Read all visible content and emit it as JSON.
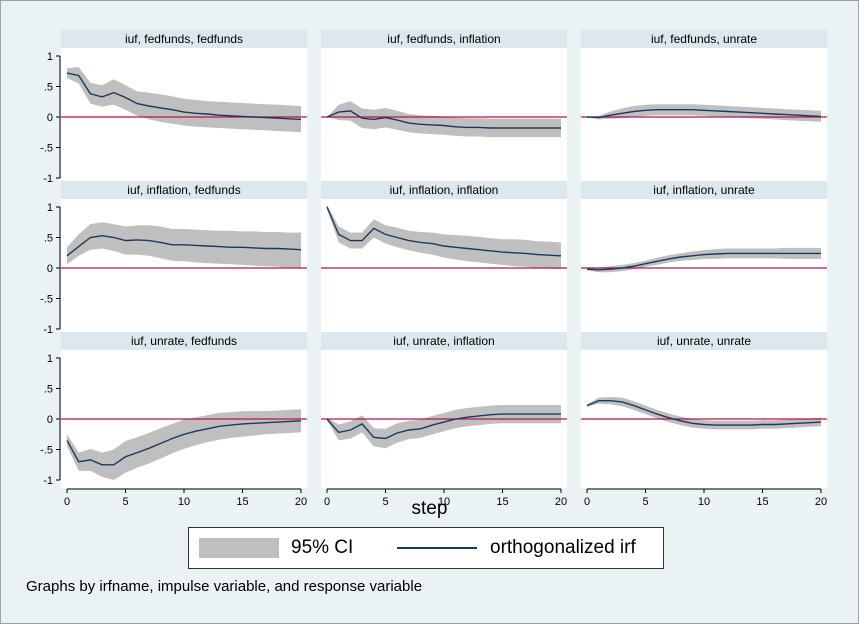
{
  "note": "Graphs by irfname, impulse variable, and response variable",
  "legend": {
    "ci_label": "95% CI",
    "irf_label": "orthogonalized irf"
  },
  "colors": {
    "ci_band": "#bfbfbf",
    "irf_line": "#1b3a5a",
    "zero_line": "#b0164e",
    "panel_bg": "#ffffff",
    "header_bg": "#dce8ee",
    "plot_region": "#eaf2f3"
  },
  "chart_data": {
    "type": "line",
    "xlabel": "step",
    "xlim": [
      0,
      20
    ],
    "ylim": [
      -1,
      1
    ],
    "xticks": [
      "0",
      "5",
      "10",
      "15",
      "20"
    ],
    "yticks": [
      "1",
      ".5",
      "0",
      "-.5",
      "-1"
    ],
    "steps": [
      0,
      1,
      2,
      3,
      4,
      5,
      6,
      7,
      8,
      9,
      10,
      11,
      12,
      13,
      14,
      15,
      16,
      17,
      18,
      19,
      20
    ],
    "panels": [
      {
        "title": "iuf, fedfunds, fedfunds",
        "irf": [
          0.72,
          0.68,
          0.38,
          0.33,
          0.4,
          0.32,
          0.22,
          0.18,
          0.15,
          0.12,
          0.08,
          0.06,
          0.05,
          0.03,
          0.02,
          0.01,
          0.0,
          -0.01,
          -0.02,
          -0.03,
          -0.04
        ],
        "lower": [
          0.64,
          0.55,
          0.22,
          0.17,
          0.2,
          0.12,
          0.02,
          -0.04,
          -0.08,
          -0.11,
          -0.14,
          -0.16,
          -0.17,
          -0.18,
          -0.19,
          -0.2,
          -0.21,
          -0.22,
          -0.23,
          -0.24,
          -0.25
        ],
        "upper": [
          0.8,
          0.82,
          0.56,
          0.52,
          0.62,
          0.52,
          0.42,
          0.4,
          0.37,
          0.34,
          0.3,
          0.28,
          0.26,
          0.25,
          0.24,
          0.23,
          0.22,
          0.21,
          0.2,
          0.19,
          0.18
        ]
      },
      {
        "title": "iuf, fedfunds, inflation",
        "irf": [
          0.0,
          0.08,
          0.1,
          -0.02,
          -0.04,
          -0.01,
          -0.05,
          -0.1,
          -0.12,
          -0.13,
          -0.14,
          -0.16,
          -0.17,
          -0.17,
          -0.18,
          -0.18,
          -0.18,
          -0.18,
          -0.18,
          -0.18,
          -0.18
        ],
        "lower": [
          0.0,
          -0.05,
          -0.06,
          -0.18,
          -0.2,
          -0.17,
          -0.21,
          -0.25,
          -0.27,
          -0.28,
          -0.29,
          -0.31,
          -0.32,
          -0.32,
          -0.33,
          -0.33,
          -0.33,
          -0.33,
          -0.33,
          -0.33,
          -0.33
        ],
        "upper": [
          0.0,
          0.2,
          0.26,
          0.14,
          0.12,
          0.15,
          0.1,
          0.05,
          0.03,
          0.02,
          0.01,
          -0.01,
          -0.02,
          -0.02,
          -0.03,
          -0.03,
          -0.03,
          -0.03,
          -0.03,
          -0.03,
          -0.03
        ]
      },
      {
        "title": "iuf, fedfunds, unrate",
        "irf": [
          0.0,
          -0.01,
          0.03,
          0.06,
          0.09,
          0.11,
          0.12,
          0.12,
          0.12,
          0.12,
          0.11,
          0.1,
          0.09,
          0.08,
          0.07,
          0.06,
          0.05,
          0.04,
          0.03,
          0.02,
          0.01
        ],
        "lower": [
          0.0,
          -0.04,
          -0.03,
          -0.02,
          0.0,
          0.02,
          0.03,
          0.03,
          0.03,
          0.03,
          0.02,
          0.01,
          0.0,
          -0.01,
          -0.02,
          -0.03,
          -0.04,
          -0.05,
          -0.06,
          -0.07,
          -0.08
        ],
        "upper": [
          0.0,
          0.02,
          0.09,
          0.14,
          0.18,
          0.2,
          0.21,
          0.21,
          0.21,
          0.21,
          0.2,
          0.19,
          0.18,
          0.17,
          0.16,
          0.15,
          0.14,
          0.13,
          0.12,
          0.11,
          0.1
        ]
      },
      {
        "title": "iuf, inflation, fedfunds",
        "irf": [
          0.2,
          0.35,
          0.5,
          0.53,
          0.5,
          0.45,
          0.46,
          0.45,
          0.42,
          0.38,
          0.38,
          0.37,
          0.36,
          0.35,
          0.34,
          0.34,
          0.33,
          0.32,
          0.32,
          0.31,
          0.3
        ],
        "lower": [
          0.06,
          0.2,
          0.3,
          0.32,
          0.28,
          0.22,
          0.22,
          0.2,
          0.16,
          0.12,
          0.11,
          0.09,
          0.08,
          0.07,
          0.06,
          0.05,
          0.04,
          0.03,
          0.02,
          0.01,
          0.0
        ],
        "upper": [
          0.34,
          0.55,
          0.72,
          0.75,
          0.72,
          0.68,
          0.7,
          0.7,
          0.68,
          0.64,
          0.64,
          0.63,
          0.62,
          0.61,
          0.61,
          0.6,
          0.6,
          0.59,
          0.59,
          0.58,
          0.58
        ]
      },
      {
        "title": "iuf, inflation, inflation",
        "irf": [
          1.0,
          0.55,
          0.45,
          0.45,
          0.65,
          0.55,
          0.5,
          0.45,
          0.42,
          0.4,
          0.36,
          0.34,
          0.32,
          0.3,
          0.28,
          0.26,
          0.25,
          0.24,
          0.22,
          0.21,
          0.2
        ],
        "lower": [
          0.96,
          0.42,
          0.32,
          0.32,
          0.5,
          0.4,
          0.34,
          0.29,
          0.25,
          0.22,
          0.17,
          0.14,
          0.11,
          0.09,
          0.07,
          0.05,
          0.03,
          0.02,
          0.0,
          -0.01,
          -0.02
        ],
        "upper": [
          1.04,
          0.68,
          0.58,
          0.58,
          0.8,
          0.7,
          0.66,
          0.61,
          0.59,
          0.58,
          0.55,
          0.54,
          0.53,
          0.51,
          0.49,
          0.47,
          0.47,
          0.46,
          0.44,
          0.43,
          0.42
        ]
      },
      {
        "title": "iuf, inflation, unrate",
        "irf": [
          -0.02,
          -0.03,
          -0.02,
          0.0,
          0.03,
          0.07,
          0.11,
          0.15,
          0.18,
          0.2,
          0.22,
          0.23,
          0.24,
          0.24,
          0.24,
          0.24,
          0.24,
          0.24,
          0.24,
          0.24,
          0.24
        ],
        "lower": [
          -0.04,
          -0.07,
          -0.07,
          -0.05,
          -0.02,
          0.02,
          0.05,
          0.09,
          0.12,
          0.13,
          0.15,
          0.15,
          0.16,
          0.16,
          0.16,
          0.16,
          0.16,
          0.15,
          0.15,
          0.15,
          0.15
        ],
        "upper": [
          0.0,
          0.01,
          0.03,
          0.05,
          0.08,
          0.12,
          0.17,
          0.21,
          0.24,
          0.27,
          0.29,
          0.31,
          0.32,
          0.32,
          0.32,
          0.32,
          0.32,
          0.33,
          0.33,
          0.33,
          0.33
        ]
      },
      {
        "title": "iuf, unrate, fedfunds",
        "irf": [
          -0.35,
          -0.7,
          -0.67,
          -0.75,
          -0.75,
          -0.62,
          -0.55,
          -0.48,
          -0.4,
          -0.32,
          -0.25,
          -0.2,
          -0.16,
          -0.12,
          -0.1,
          -0.08,
          -0.07,
          -0.06,
          -0.05,
          -0.04,
          -0.03
        ],
        "lower": [
          -0.45,
          -0.85,
          -0.85,
          -0.95,
          -1.0,
          -0.88,
          -0.8,
          -0.73,
          -0.65,
          -0.56,
          -0.49,
          -0.43,
          -0.38,
          -0.34,
          -0.31,
          -0.29,
          -0.27,
          -0.25,
          -0.24,
          -0.23,
          -0.22
        ],
        "upper": [
          -0.25,
          -0.55,
          -0.49,
          -0.55,
          -0.5,
          -0.36,
          -0.3,
          -0.23,
          -0.15,
          -0.08,
          -0.01,
          0.03,
          0.06,
          0.1,
          0.11,
          0.13,
          0.13,
          0.13,
          0.14,
          0.15,
          0.16
        ]
      },
      {
        "title": "iuf, unrate, inflation",
        "irf": [
          0.0,
          -0.22,
          -0.18,
          -0.08,
          -0.3,
          -0.32,
          -0.23,
          -0.18,
          -0.16,
          -0.1,
          -0.05,
          0.0,
          0.03,
          0.05,
          0.07,
          0.08,
          0.08,
          0.08,
          0.08,
          0.08,
          0.08
        ],
        "lower": [
          -0.02,
          -0.35,
          -0.32,
          -0.22,
          -0.45,
          -0.48,
          -0.39,
          -0.33,
          -0.31,
          -0.25,
          -0.2,
          -0.15,
          -0.12,
          -0.1,
          -0.08,
          -0.07,
          -0.07,
          -0.07,
          -0.07,
          -0.07,
          -0.07
        ],
        "upper": [
          0.02,
          -0.09,
          -0.04,
          0.06,
          -0.15,
          -0.16,
          -0.07,
          -0.03,
          -0.01,
          0.05,
          0.1,
          0.15,
          0.18,
          0.2,
          0.22,
          0.23,
          0.23,
          0.23,
          0.23,
          0.23,
          0.23
        ]
      },
      {
        "title": "iuf, unrate, unrate",
        "irf": [
          0.22,
          0.3,
          0.3,
          0.28,
          0.22,
          0.15,
          0.08,
          0.02,
          -0.03,
          -0.07,
          -0.09,
          -0.1,
          -0.1,
          -0.1,
          -0.1,
          -0.09,
          -0.09,
          -0.08,
          -0.07,
          -0.06,
          -0.05
        ],
        "lower": [
          0.2,
          0.25,
          0.24,
          0.21,
          0.15,
          0.08,
          0.01,
          -0.05,
          -0.1,
          -0.14,
          -0.16,
          -0.17,
          -0.17,
          -0.17,
          -0.17,
          -0.16,
          -0.16,
          -0.15,
          -0.14,
          -0.13,
          -0.12
        ],
        "upper": [
          0.24,
          0.35,
          0.36,
          0.35,
          0.29,
          0.22,
          0.15,
          0.09,
          0.04,
          0.0,
          -0.02,
          -0.03,
          -0.03,
          -0.03,
          -0.03,
          -0.02,
          -0.02,
          -0.01,
          0.0,
          0.01,
          0.02
        ]
      }
    ]
  }
}
